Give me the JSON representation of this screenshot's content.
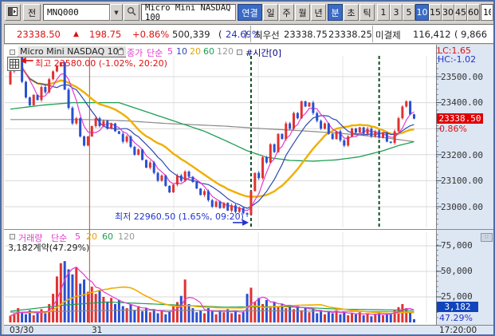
{
  "toolbar": {
    "jeon_label": "전",
    "stock_code": "MNQ000",
    "stock_name": "Micro Mini NASDAQ 100",
    "connect_label": "연결",
    "period_buttons": [
      "일",
      "주",
      "월",
      "년"
    ],
    "mode_buttons": [
      "분",
      "초",
      "틱"
    ],
    "interval_buttons": [
      "1",
      "3",
      "5",
      "10",
      "15",
      "30",
      "45",
      "60"
    ],
    "active_interval": "10",
    "interval_input": "10"
  },
  "quote": {
    "price": "23338.50",
    "arrow": "▲",
    "change": "198.75",
    "change_pct": "+0.86%",
    "volume": "500,339",
    "paren_open": "(",
    "volume_pct": "24.69%",
    "paren_close": ")",
    "best_label": "최우선",
    "best_ask": "23338.75",
    "best_bid": "23338.25",
    "oi_label": "미결제",
    "oi_value": "116,412",
    "oi_extra": "( 9,866"
  },
  "main_chart": {
    "title": "Micro Mini NASDAQ 100",
    "close_label": "종가",
    "ma_label": "단순",
    "periods": [
      "5",
      "10",
      "20",
      "60",
      "120"
    ],
    "overlay_label": "#시간[0]",
    "high_label": "최고 23580.00 (-1.02%, 20:20)",
    "low_label": "최저 22960.50 (1.65%, 09:20)",
    "lc": "LC:1.65",
    "hc": "HC:-1.02",
    "y_labels": [
      "23500.00",
      "23400.00",
      "23200.00",
      "23100.00",
      "23000.00"
    ],
    "price_marker": "23338.50",
    "price_marker_pct": "0.86%"
  },
  "volume_chart": {
    "title": "거래량",
    "ma_label": "단순",
    "periods": [
      "5",
      "20",
      "60",
      "120"
    ],
    "current_label": "3,182계약(47.29%)",
    "y_labels": [
      "75,000",
      "50,000",
      "25,000"
    ],
    "marker": "3,182",
    "marker_pct": "47.29%"
  },
  "x_axis": {
    "label_day1": "03/30",
    "label_day2": "31",
    "time": "17:20:00"
  },
  "colors": {
    "up": "#e03232",
    "down": "#2a4fd0",
    "ma5": "#e23bd0",
    "ma10": "#2d49b0",
    "ma20": "#efaf00",
    "ma60": "#1d9e50",
    "ma120": "#8a8a8a",
    "day_line": "#cc4433",
    "event_line": "#0a4f1e",
    "grid": "#d9d9d9",
    "vgrid": "#e4e4e4",
    "price_marker_bg": "#e00000",
    "volume_marker_bg": "#1144bb"
  },
  "chart_data": {
    "type": "candlestick+volume",
    "interval": "10min",
    "first_open": 23470,
    "closes": [
      23520,
      23565,
      23575,
      23480,
      23420,
      23390,
      23430,
      23410,
      23460,
      23440,
      23490,
      23520,
      23540,
      23555,
      23450,
      23380,
      23320,
      23340,
      23270,
      23235,
      23270,
      23310,
      23340,
      23310,
      23330,
      23300,
      23320,
      23290,
      23280,
      23250,
      23270,
      23230,
      23200,
      23220,
      23180,
      23150,
      23170,
      23130,
      23100,
      23120,
      23080,
      23055,
      23085,
      23120,
      23100,
      23135,
      23115,
      23095,
      23070,
      23045,
      23060,
      23025,
      23000,
      23020,
      22995,
      23015,
      22985,
      23005,
      22980,
      22995,
      22975,
      22970,
      23060,
      23130,
      23110,
      23190,
      23170,
      23240,
      23210,
      23280,
      23260,
      23320,
      23300,
      23360,
      23340,
      23405,
      23385,
      23400,
      23360,
      23330,
      23300,
      23320,
      23280,
      23260,
      23290,
      23255,
      23235,
      23270,
      23300,
      23285,
      23305,
      23280,
      23300,
      23270,
      23290,
      23265,
      23285,
      23250,
      23245,
      23290,
      23340,
      23385,
      23405,
      23355,
      23338.5
    ],
    "volumes": [
      6500,
      9000,
      14000,
      10000,
      8000,
      12000,
      7000,
      10500,
      13000,
      9000,
      18000,
      28000,
      45000,
      58000,
      60000,
      52000,
      47000,
      54000,
      38000,
      42000,
      30000,
      35000,
      28000,
      32000,
      25000,
      20000,
      24000,
      18000,
      22000,
      16000,
      14000,
      18000,
      12000,
      16000,
      11000,
      14000,
      10000,
      13000,
      9000,
      12000,
      8000,
      11000,
      16000,
      20000,
      26000,
      42000,
      18000,
      14000,
      10000,
      12000,
      9000,
      14000,
      11000,
      8000,
      12000,
      10000,
      13000,
      9000,
      11000,
      8000,
      10000,
      28000,
      34000,
      20000,
      24000,
      18000,
      22000,
      16000,
      20000,
      15000,
      18000,
      14000,
      17000,
      13000,
      16000,
      12000,
      15000,
      10000,
      13000,
      9000,
      12000,
      8000,
      11000,
      9000,
      12000,
      8000,
      10000,
      7000,
      9000,
      8000,
      10000,
      7000,
      9000,
      6000,
      8000,
      10000,
      7000,
      9000,
      8000,
      12000,
      15000,
      18000,
      14000,
      10000,
      3182
    ],
    "high": {
      "index": 2,
      "value": 23580
    },
    "low": {
      "index": 61,
      "value": 22960.5
    },
    "ma60_points": [
      [
        0,
        23375
      ],
      [
        8,
        23390
      ],
      [
        16,
        23400
      ],
      [
        28,
        23400
      ],
      [
        34,
        23370
      ],
      [
        42,
        23330
      ],
      [
        50,
        23290
      ],
      [
        56,
        23250
      ],
      [
        61,
        23215
      ],
      [
        66,
        23190
      ],
      [
        72,
        23178
      ],
      [
        78,
        23175
      ],
      [
        84,
        23180
      ],
      [
        90,
        23192
      ],
      [
        96,
        23215
      ],
      [
        100,
        23235
      ],
      [
        104,
        23250
      ]
    ],
    "ma120_points": [
      [
        0,
        23335
      ],
      [
        20,
        23335
      ],
      [
        30,
        23330
      ],
      [
        40,
        23320
      ],
      [
        55,
        23310
      ],
      [
        65,
        23300
      ],
      [
        75,
        23292
      ],
      [
        85,
        23282
      ],
      [
        95,
        23268
      ],
      [
        104,
        23250
      ]
    ],
    "vma60_points": [
      [
        0,
        11000
      ],
      [
        14,
        17000
      ],
      [
        25,
        20000
      ],
      [
        40,
        17500
      ],
      [
        55,
        15000
      ],
      [
        70,
        15500
      ],
      [
        85,
        13000
      ],
      [
        104,
        12000
      ]
    ],
    "vma120_points": [
      [
        0,
        10000
      ],
      [
        30,
        12000
      ],
      [
        60,
        11500
      ],
      [
        104,
        10500
      ]
    ],
    "price_gridlines": [
      23500,
      23400,
      23300,
      23200,
      23100,
      23000
    ],
    "volume_gridlines": [
      75000,
      50000,
      25000
    ],
    "day_separator_index": 20.4,
    "event_line_indexes": [
      62,
      95
    ]
  }
}
